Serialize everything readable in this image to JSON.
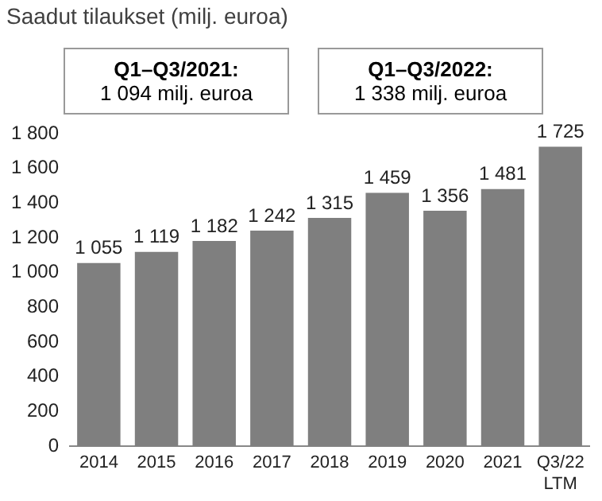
{
  "chart_data": {
    "type": "bar",
    "title": "Saadut tilaukset (milj. euroa)",
    "annotations": [
      "Q1–Q3/2021:",
      "1 094 milj. euroa",
      "Q1–Q3/2022:",
      "1 338 milj. euroa"
    ],
    "categories": [
      "2014",
      "2015",
      "2016",
      "2017",
      "2018",
      "2019",
      "2020",
      "2021",
      "Q3/22\nLTM"
    ],
    "values": [
      1055,
      1119,
      1182,
      1242,
      1315,
      1459,
      1356,
      1481,
      1725
    ],
    "value_labels": [
      "1 055",
      "1 119",
      "1 182",
      "1 242",
      "1 315",
      "1 459",
      "1 356",
      "1 481",
      "1 725"
    ],
    "color": "#7f7f7f",
    "ylim": [
      0,
      1800
    ],
    "yticks": [
      0,
      200,
      400,
      600,
      800,
      {
        "value": 1000,
        "label": "1 000"
      },
      {
        "value": 1200,
        "label": "1 200"
      },
      {
        "value": 1400,
        "label": "1 400"
      },
      {
        "value": 1600,
        "label": "1 600"
      },
      {
        "value": 1800,
        "label": "1 800"
      }
    ],
    "grid": false,
    "legend": false
  }
}
